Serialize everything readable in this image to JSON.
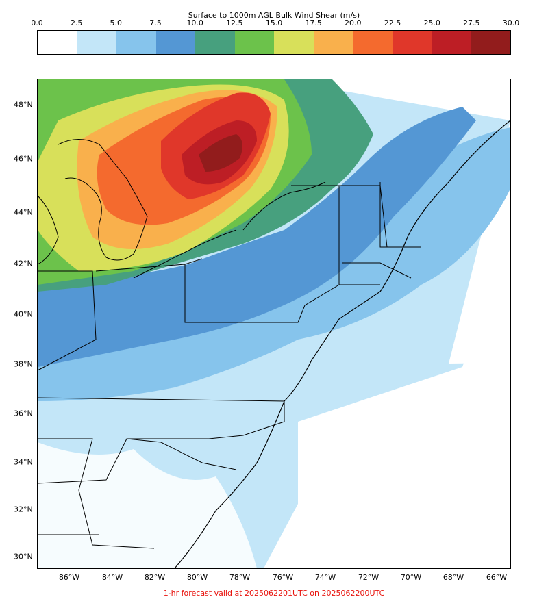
{
  "colorbar": {
    "title": "Surface to 1000m AGL Bulk Wind Shear (m/s)",
    "ticks": [
      "0.0",
      "2.5",
      "5.0",
      "7.5",
      "10.0",
      "12.5",
      "15.0",
      "17.5",
      "20.0",
      "22.5",
      "25.0",
      "27.5",
      "30.0"
    ],
    "colors": [
      "#ffffff",
      "#c3e6f8",
      "#86c4ec",
      "#5497d4",
      "#47a07e",
      "#6cc24b",
      "#d8e05a",
      "#f9b04c",
      "#f46a2e",
      "#e0372a",
      "#bd1e25",
      "#921c1c"
    ]
  },
  "map": {
    "lat_labels": [
      "48°N",
      "46°N",
      "44°N",
      "42°N",
      "40°N",
      "38°N",
      "36°N",
      "34°N",
      "32°N",
      "30°N"
    ],
    "lon_labels": [
      "86°W",
      "84°W",
      "82°W",
      "80°W",
      "78°W",
      "76°W",
      "74°W",
      "72°W",
      "70°W",
      "68°W",
      "66°W"
    ],
    "caption": "1-hr forecast valid at 2025062201UTC on 2025062200UTC"
  }
}
